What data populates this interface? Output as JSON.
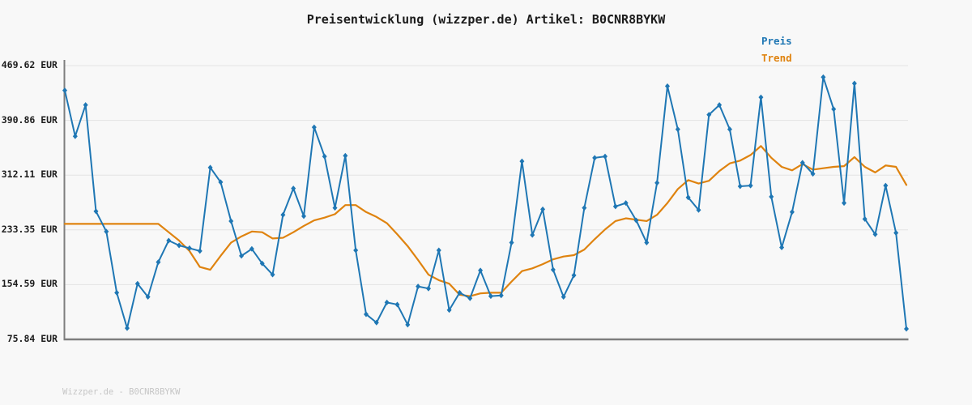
{
  "page": {
    "background": "#f8f8f8"
  },
  "header": {
    "title": "Preisentwicklung (wizzper.de) Artikel: B0CNR8BYKW"
  },
  "legend": {
    "items": [
      {
        "label": "Preis",
        "color": "#1f77b4"
      },
      {
        "label": "Trend",
        "color": "#df830f"
      }
    ]
  },
  "footer": {
    "text": "Wizzper.de - B0CNR8BYKW"
  },
  "chart_data": {
    "type": "line",
    "title": "Preisentwicklung (wizzper.de) Artikel: B0CNR8BYKW",
    "currency": "EUR",
    "grid": "horizontal",
    "legend_position": "top-right",
    "x_axis": {
      "tick_labels_visible": false,
      "points": 82
    },
    "ylim": [
      75.84,
      469.62
    ],
    "yticks": [
      469.62,
      390.86,
      312.11,
      233.35,
      154.59,
      75.84
    ],
    "ytick_labels": [
      "469.62 EUR",
      "390.86 EUR",
      "312.11 EUR",
      "233.35 EUR",
      "154.59 EUR",
      "75.84 EUR"
    ],
    "series": [
      {
        "name": "Preis",
        "color": "#1f77b4",
        "marker": "diamond",
        "values": [
          434,
          368,
          413,
          260,
          231,
          143,
          92,
          156,
          137,
          187,
          218,
          211,
          207,
          203,
          323,
          302,
          246,
          196,
          206,
          185,
          169,
          255,
          293,
          253,
          381,
          339,
          265,
          340,
          204,
          112,
          100,
          129,
          126,
          97,
          152,
          149,
          204,
          118,
          143,
          135,
          175,
          138,
          139,
          215,
          332,
          226,
          263,
          176,
          137,
          168,
          265,
          337,
          339,
          267,
          272,
          247,
          215,
          301,
          440,
          378,
          280,
          262,
          399,
          413,
          378,
          296,
          297,
          424,
          281,
          208,
          259,
          330,
          314,
          453,
          407,
          272,
          444,
          249,
          227,
          297,
          229,
          91
        ]
      },
      {
        "name": "Trend",
        "color": "#df830f",
        "marker": "none",
        "values": [
          242,
          242,
          242,
          242,
          242,
          242,
          242,
          242,
          242,
          242,
          230,
          218,
          203,
          180,
          176,
          196,
          215,
          224,
          231,
          230,
          221,
          222,
          230,
          239,
          247,
          251,
          256,
          269,
          269,
          259,
          252,
          243,
          227,
          210,
          190,
          169,
          161,
          156,
          140,
          138,
          142,
          143,
          143,
          159,
          174,
          178,
          184,
          191,
          195,
          197,
          205,
          220,
          234,
          246,
          250,
          248,
          246,
          255,
          272,
          292,
          305,
          300,
          304,
          318,
          329,
          333,
          341,
          354,
          337,
          324,
          319,
          328,
          320,
          322,
          324,
          325,
          338,
          324,
          316,
          326,
          324,
          298
        ]
      }
    ]
  }
}
